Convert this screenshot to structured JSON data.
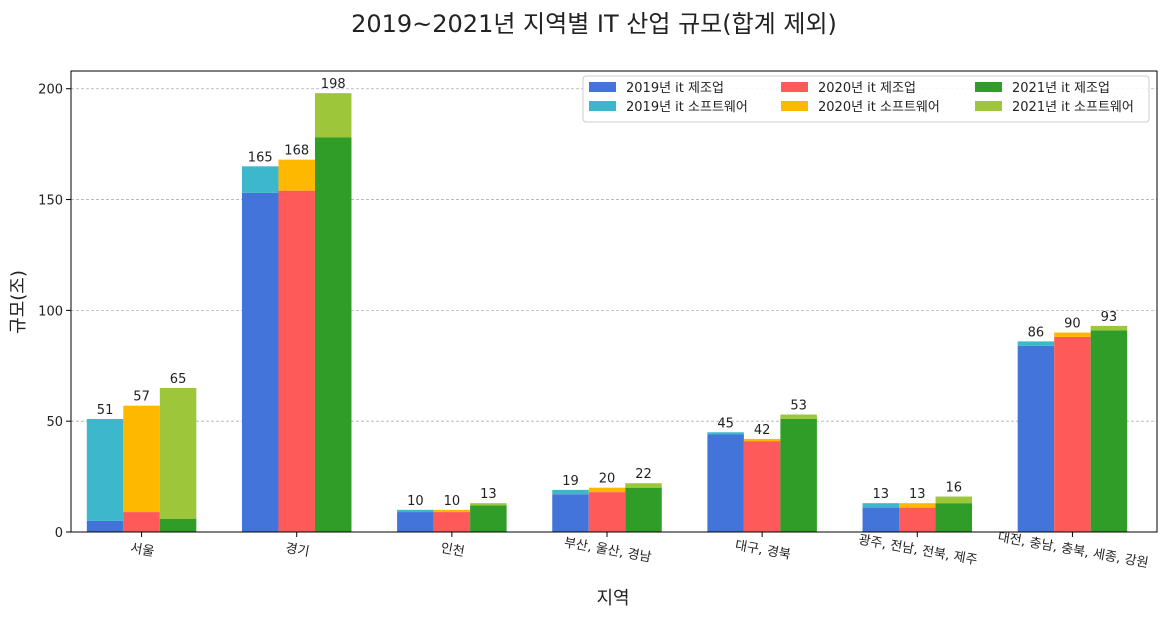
{
  "chart_data": {
    "type": "bar",
    "title": "2019~2021년 지역별 IT 산업 규모(합계 제외)",
    "xlabel": "지역",
    "ylabel": "규모(조)",
    "ylim": [
      0,
      208
    ],
    "yticks": [
      0,
      50,
      100,
      150,
      200
    ],
    "grid": "y-dashed",
    "legend_position": "top-right",
    "categories": [
      "서울",
      "경기",
      "인천",
      "부산, 울산, 경남",
      "대구, 경북",
      "광주, 전남, 전북, 제주",
      "대전, 충남, 충북, 세종, 강원"
    ],
    "stacked_groups": [
      {
        "year": "2019",
        "totals": [
          51,
          165,
          10,
          19,
          45,
          13,
          86
        ],
        "series": [
          {
            "name": "2019년 it 제조업",
            "color": "#4374D9",
            "values": [
              5,
              153,
              9,
              17,
              44,
              11,
              84
            ]
          },
          {
            "name": "2019년 it 소프트웨어",
            "color": "#3DB7CC",
            "values": [
              46,
              12,
              1,
              2,
              1,
              2,
              2
            ]
          }
        ]
      },
      {
        "year": "2020",
        "totals": [
          57,
          168,
          10,
          20,
          42,
          13,
          90
        ],
        "series": [
          {
            "name": "2020년 it 제조업",
            "color": "#FF5A5A",
            "values": [
              9,
              154,
              9,
              18,
              41,
              11,
              88
            ]
          },
          {
            "name": "2020년 it 소프트웨어",
            "color": "#FFB800",
            "values": [
              48,
              14,
              1,
              2,
              1,
              2,
              2
            ]
          }
        ]
      },
      {
        "year": "2021",
        "totals": [
          65,
          198,
          13,
          22,
          53,
          16,
          93
        ],
        "series": [
          {
            "name": "2021년 it 제조업",
            "color": "#2F9D27",
            "values": [
              6,
              178,
              12,
              20,
              51,
              13,
              91
            ]
          },
          {
            "name": "2021년 it 소프트웨어",
            "color": "#9DC63A",
            "values": [
              59,
              20,
              1,
              2,
              2,
              3,
              2
            ]
          }
        ]
      }
    ],
    "legend_order": [
      "2019년 it 제조업",
      "2020년 it 제조업",
      "2021년 it 제조업",
      "2019년 it 소프트웨어",
      "2020년 it 소프트웨어",
      "2021년 it 소프트웨어"
    ]
  }
}
